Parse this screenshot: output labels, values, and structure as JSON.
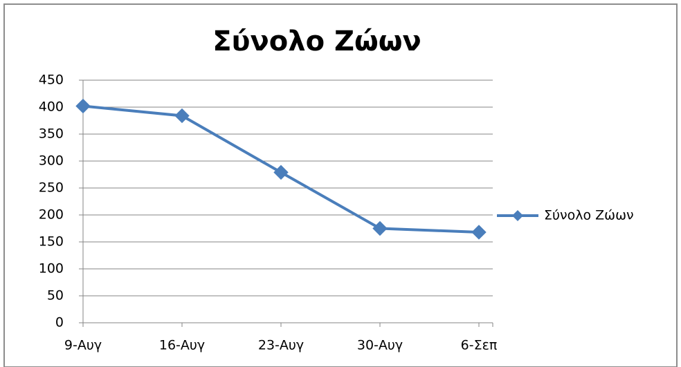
{
  "chart_data": {
    "type": "line",
    "title": "Σύνολο Ζώων",
    "categories": [
      "9-Αυγ",
      "16-Αυγ",
      "23-Αυγ",
      "30-Αυγ",
      "6-Σεπ"
    ],
    "series": [
      {
        "name": "Σύνολο Ζώων",
        "color": "#4a7ebb",
        "values": [
          402,
          384,
          279,
          175,
          168
        ]
      }
    ],
    "ylim": [
      0,
      450
    ],
    "yticks": [
      0,
      50,
      100,
      150,
      200,
      250,
      300,
      350,
      400,
      450
    ],
    "grid": true,
    "legend": "right"
  }
}
